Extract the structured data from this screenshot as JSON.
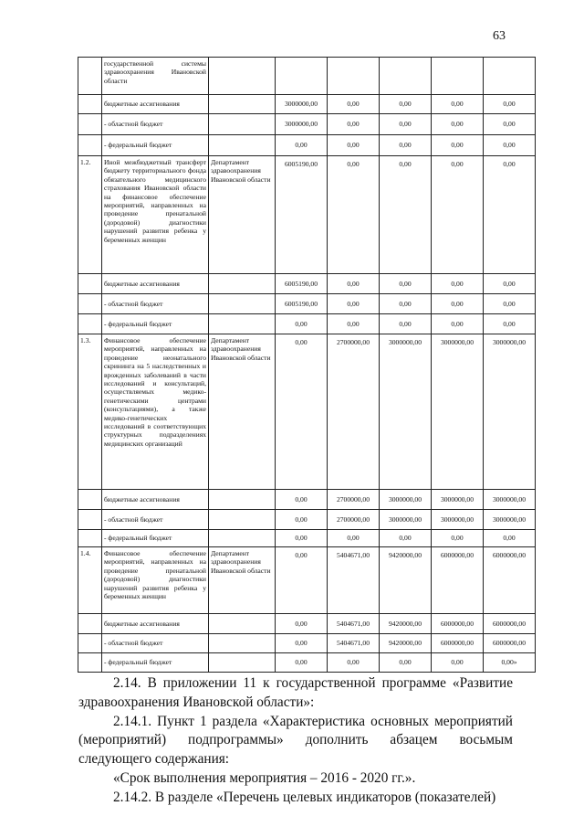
{
  "page_number": "63",
  "table": {
    "rows": [
      {
        "num": "",
        "name": "государственной системы здравоохранения Ивановской области",
        "executor": "",
        "values": [
          "",
          "",
          "",
          "",
          ""
        ],
        "h": 41,
        "type": "main"
      },
      {
        "num": "",
        "name": "бюджетные ассигнования",
        "executor": "",
        "values": [
          "3000000,00",
          "0,00",
          "0,00",
          "0,00",
          "0,00"
        ],
        "h": 21,
        "type": "sub"
      },
      {
        "num": "",
        "name": "- областной бюджет",
        "executor": "",
        "values": [
          "3000000,00",
          "0,00",
          "0,00",
          "0,00",
          "0,00"
        ],
        "h": 23,
        "type": "sub"
      },
      {
        "num": "",
        "name": "- федеральный бюджет",
        "executor": "",
        "values": [
          "0,00",
          "0,00",
          "0,00",
          "0,00",
          "0,00"
        ],
        "h": 23,
        "type": "sub"
      },
      {
        "num": "1.2.",
        "name": "Иной межбюджетный трансферт бюджету территориального фонда обязательного медицинского страхования Ивановской области на финансовое обеспечение мероприятий, направленных на проведение пренатальной (дородовой) диагностики нарушений развития ребенка у беременных женщин",
        "executor": "Департамент здравоохранения Ивановской области",
        "values": [
          "6005190,00",
          "0,00",
          "0,00",
          "0,00",
          "0,00"
        ],
        "h": 129,
        "type": "main"
      },
      {
        "num": "",
        "name": "бюджетные ассигнования",
        "executor": "",
        "values": [
          "6005190,00",
          "0,00",
          "0,00",
          "0,00",
          "0,00"
        ],
        "h": 22,
        "type": "sub"
      },
      {
        "num": "",
        "name": "- областной бюджет",
        "executor": "",
        "values": [
          "6005190,00",
          "0,00",
          "0,00",
          "0,00",
          "0,00"
        ],
        "h": 22,
        "type": "sub"
      },
      {
        "num": "",
        "name": "- федеральный бюджет",
        "executor": "",
        "values": [
          "0,00",
          "0,00",
          "0,00",
          "0,00",
          "0,00"
        ],
        "h": 22,
        "type": "sub"
      },
      {
        "num": "1.3.",
        "name": "Финансовое обеспечение мероприятий, направленных на проведение неонатального скрининга на 5 наследственных и врожденных заболеваний в части исследований и консультаций, осуществляемых медико-генетическими центрами (консультациями), а также медико-генетических исследований в соответствующих структурных подразделениях медицинских организаций",
        "executor": "Департамент здравоохранения Ивановской области",
        "values": [
          "0,00",
          "2700000,00",
          "3000000,00",
          "3000000,00",
          "3000000,00"
        ],
        "h": 170,
        "type": "main"
      },
      {
        "num": "",
        "name": "бюджетные ассигнования",
        "executor": "",
        "values": [
          "0,00",
          "2700000,00",
          "3000000,00",
          "3000000,00",
          "3000000,00"
        ],
        "h": 22,
        "type": "sub"
      },
      {
        "num": "",
        "name": "- областной бюджет",
        "executor": "",
        "values": [
          "0,00",
          "2700000,00",
          "3000000,00",
          "3000000,00",
          "3000000,00"
        ],
        "h": 22,
        "type": "sub"
      },
      {
        "num": "",
        "name": "- федеральный бюджет",
        "executor": "",
        "values": [
          "0,00",
          "0,00",
          "0,00",
          "0,00",
          "0,00"
        ],
        "h": 19,
        "type": "sub"
      },
      {
        "num": "1.4.",
        "name": "Финансовое обеспечение мероприятий, направленных на проведение пренатальной (дородовой) диагностики нарушений развития ребенка у беременных женщин",
        "executor": "Департамент здравоохранения Ивановской области",
        "values": [
          "0,00",
          "5404671,00",
          "9420000,00",
          "6000000,00",
          "6000000,00"
        ],
        "h": 73,
        "type": "main"
      },
      {
        "num": "",
        "name": "бюджетные ассигнования",
        "executor": "",
        "values": [
          "0,00",
          "5404671,00",
          "9420000,00",
          "6000000,00",
          "6000000,00"
        ],
        "h": 22,
        "type": "sub"
      },
      {
        "num": "",
        "name": "- областной бюджет",
        "executor": "",
        "values": [
          "0,00",
          "5404671,00",
          "9420000,00",
          "6000000,00",
          "6000000,00"
        ],
        "h": 21,
        "type": "sub"
      },
      {
        "num": "",
        "name": "- федеральный бюджет",
        "executor": "",
        "values": [
          "0,00",
          "0,00",
          "0,00",
          "0,00",
          "0,00»"
        ],
        "h": 21,
        "type": "sub"
      }
    ]
  },
  "paragraphs": [
    "2.14. В приложении 11 к государственной программе «Развитие здравоохранения Ивановской области»:",
    "2.14.1. Пункт 1 раздела «Характеристика основных мероприятий (мероприятий) подпрограммы» дополнить абзацем восьмым следующего содержания:",
    "«Срок выполнения мероприятия – 2016 - 2020 гг.».",
    "2.14.2. В разделе «Перечень целевых индикаторов (показателей)"
  ]
}
